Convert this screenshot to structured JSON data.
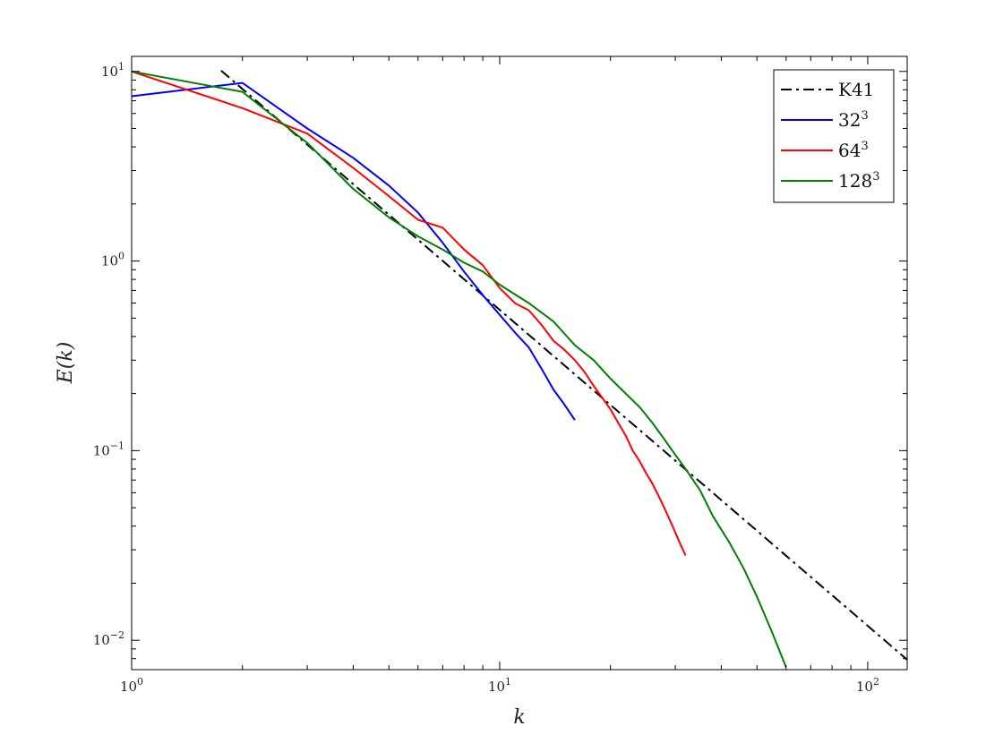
{
  "chart_data": {
    "type": "line",
    "title": "",
    "xlabel": "k",
    "ylabel": "E(k)",
    "xscale": "log",
    "yscale": "log",
    "xlim": [
      1,
      128
    ],
    "ylim": [
      0.007,
      12
    ],
    "xticks": [
      {
        "value": 1,
        "base": "10",
        "exp": "0"
      },
      {
        "value": 10,
        "base": "10",
        "exp": "1"
      },
      {
        "value": 100,
        "base": "10",
        "exp": "2"
      }
    ],
    "yticks": [
      {
        "value": 0.01,
        "base": "10",
        "exp": "−2"
      },
      {
        "value": 0.1,
        "base": "10",
        "exp": "−1"
      },
      {
        "value": 1,
        "base": "10",
        "exp": "0"
      },
      {
        "value": 10,
        "base": "10",
        "exp": "1"
      }
    ],
    "grid": false,
    "legend_position": "top-right",
    "series": [
      {
        "name": "K41",
        "name_base": "K41",
        "name_exp": "",
        "color": "#000000",
        "style": "dashdot",
        "x": [
          1.75,
          128
        ],
        "y": [
          10.1,
          0.0079
        ]
      },
      {
        "name": "32^3",
        "name_base": "32",
        "name_exp": "3",
        "color": "#0000ff",
        "style": "solid",
        "x": [
          1,
          2,
          3,
          4,
          5,
          6,
          7,
          8,
          9,
          10,
          11,
          12,
          13,
          14,
          15,
          16
        ],
        "y": [
          7.4,
          8.7,
          5.0,
          3.5,
          2.5,
          1.8,
          1.25,
          0.88,
          0.66,
          0.52,
          0.42,
          0.35,
          0.27,
          0.21,
          0.175,
          0.145
        ]
      },
      {
        "name": "64^3",
        "name_base": "64",
        "name_exp": "3",
        "color": "#ff0000",
        "style": "solid",
        "x": [
          1,
          2,
          3,
          4,
          5,
          6,
          7,
          8,
          9,
          10,
          11,
          12,
          13,
          14,
          15,
          16,
          17,
          18,
          19,
          20,
          21,
          22,
          23,
          24,
          25,
          26,
          27,
          28,
          29,
          30,
          31,
          32
        ],
        "y": [
          10.0,
          6.4,
          4.7,
          3.1,
          2.2,
          1.65,
          1.5,
          1.15,
          0.95,
          0.72,
          0.6,
          0.55,
          0.46,
          0.38,
          0.34,
          0.3,
          0.26,
          0.22,
          0.19,
          0.165,
          0.14,
          0.12,
          0.1,
          0.088,
          0.076,
          0.067,
          0.058,
          0.05,
          0.043,
          0.037,
          0.032,
          0.028
        ]
      },
      {
        "name": "128^3",
        "name_base": "128",
        "name_exp": "3",
        "color": "#008000",
        "style": "solid",
        "x": [
          1,
          2,
          3,
          4,
          5,
          6,
          7,
          8,
          9,
          10,
          12,
          14,
          16,
          18,
          20,
          22,
          24,
          26,
          28,
          30,
          32,
          35,
          38,
          42,
          46,
          50,
          55,
          60
        ],
        "y": [
          10.0,
          7.8,
          4.2,
          2.4,
          1.7,
          1.35,
          1.15,
          0.98,
          0.88,
          0.75,
          0.6,
          0.48,
          0.36,
          0.3,
          0.24,
          0.2,
          0.17,
          0.14,
          0.115,
          0.095,
          0.08,
          0.062,
          0.045,
          0.033,
          0.024,
          0.017,
          0.011,
          0.0072
        ]
      }
    ]
  }
}
